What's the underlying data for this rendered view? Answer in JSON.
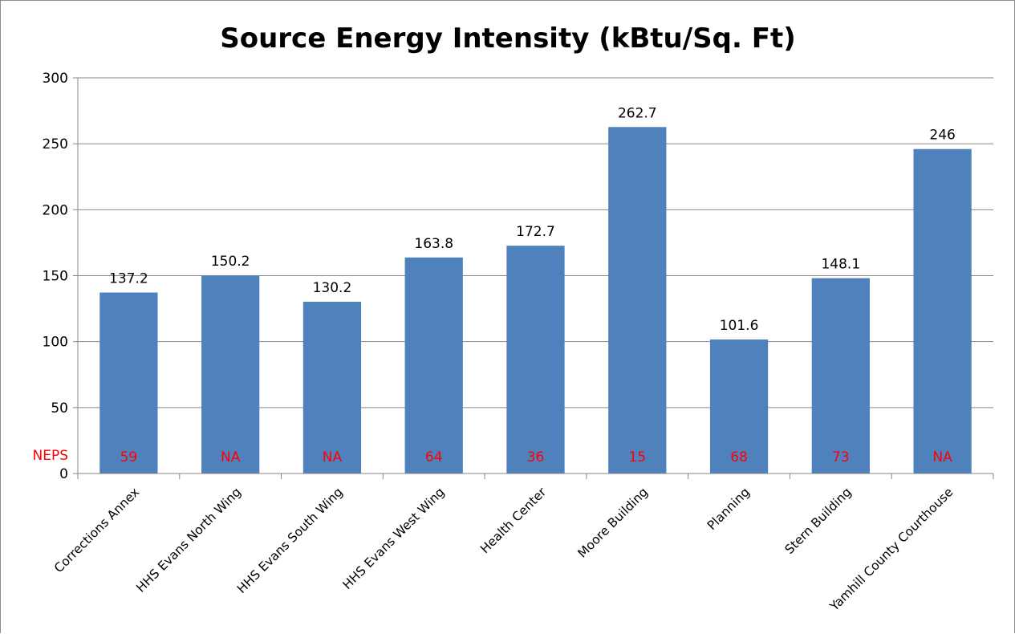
{
  "chart_data": {
    "type": "bar",
    "title": "Source Energy Intensity (kBtu/Sq. Ft)",
    "xlabel": "",
    "ylabel": "",
    "ylim": [
      0,
      300
    ],
    "yticks": [
      "0",
      "50",
      "100",
      "150",
      "200",
      "250",
      "300"
    ],
    "grid": true,
    "legend": "none",
    "categories": [
      "Corrections Annex",
      "HHS Evans North Wing",
      "HHS Evans South Wing",
      "HHS Evans West Wing",
      "Health Center",
      "Moore Building",
      "Planning",
      "Stern Building",
      "Yamhill County Courthouse"
    ],
    "values": [
      137.2,
      150.2,
      130.2,
      163.8,
      172.7,
      262.7,
      101.6,
      148.1,
      246
    ],
    "value_labels": [
      "137.2",
      "150.2",
      "130.2",
      "163.8",
      "172.7",
      "262.7",
      "101.6",
      "148.1",
      "246"
    ],
    "annotations": {
      "label": "NEPS",
      "values": [
        "59",
        "NA",
        "NA",
        "64",
        "36",
        "15",
        "68",
        "73",
        "NA"
      ]
    }
  },
  "colors": {
    "bar": "#4f81bd",
    "neps": "#ff0000",
    "grid": "#878787",
    "axis": "#878787"
  }
}
